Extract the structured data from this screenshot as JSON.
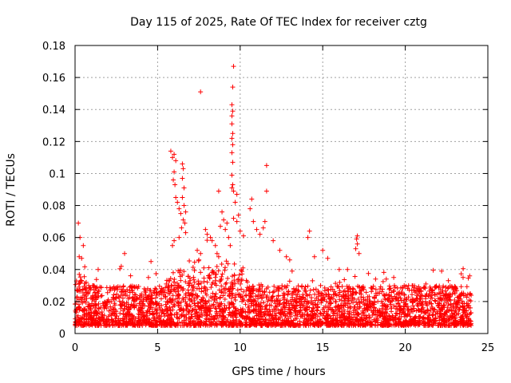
{
  "chart_data": {
    "type": "scatter",
    "title": "Day 115 of 2025, Rate Of TEC Index for receiver cztg",
    "xlabel": "GPS time / hours",
    "ylabel": "ROTI / TECUs",
    "xlim": [
      0,
      25
    ],
    "ylim": [
      0,
      0.18
    ],
    "xticks": [
      0,
      5,
      10,
      15,
      20,
      25
    ],
    "xtick_labels": [
      "0",
      "5",
      "10",
      "15",
      "20",
      "25"
    ],
    "yticks": [
      0,
      0.02,
      0.04,
      0.06,
      0.08,
      0.1,
      0.12,
      0.14,
      0.16,
      0.18
    ],
    "ytick_labels": [
      "0",
      "0.02",
      "0.04",
      "0.06",
      "0.08",
      "0.1",
      "0.12",
      "0.14",
      "0.16",
      "0.18"
    ],
    "grid": true,
    "marker": "+",
    "marker_color": "#ff0000",
    "background_profile": {
      "x_range": [
        0,
        24
      ],
      "typical_range": [
        0.005,
        0.03
      ],
      "active_window_hours": [
        5.5,
        10.5
      ]
    },
    "series": [
      {
        "name": "ROTI",
        "points": [
          [
            0.2,
            0.069
          ],
          [
            0.3,
            0.06
          ],
          [
            0.25,
            0.048
          ],
          [
            0.4,
            0.047
          ],
          [
            0.5,
            0.055
          ],
          [
            1.4,
            0.04
          ],
          [
            2.8,
            0.042
          ],
          [
            3.0,
            0.05
          ],
          [
            4.6,
            0.045
          ],
          [
            5.8,
            0.114
          ],
          [
            5.9,
            0.11
          ],
          [
            6.0,
            0.112
          ],
          [
            6.1,
            0.108
          ],
          [
            6.0,
            0.101
          ],
          [
            5.95,
            0.096
          ],
          [
            6.05,
            0.093
          ],
          [
            6.1,
            0.085
          ],
          [
            6.2,
            0.082
          ],
          [
            6.3,
            0.078
          ],
          [
            6.4,
            0.075
          ],
          [
            6.5,
            0.106
          ],
          [
            6.55,
            0.103
          ],
          [
            6.5,
            0.097
          ],
          [
            6.6,
            0.091
          ],
          [
            6.5,
            0.085
          ],
          [
            6.6,
            0.08
          ],
          [
            6.7,
            0.076
          ],
          [
            6.55,
            0.071
          ],
          [
            6.65,
            0.069
          ],
          [
            6.45,
            0.066
          ],
          [
            6.7,
            0.063
          ],
          [
            6.3,
            0.06
          ],
          [
            6.0,
            0.058
          ],
          [
            5.9,
            0.055
          ],
          [
            7.4,
            0.052
          ],
          [
            7.6,
            0.05
          ],
          [
            7.5,
            0.046
          ],
          [
            7.8,
            0.041
          ],
          [
            7.6,
            0.151
          ],
          [
            7.9,
            0.065
          ],
          [
            8.0,
            0.062
          ],
          [
            8.2,
            0.06
          ],
          [
            8.3,
            0.058
          ],
          [
            8.5,
            0.055
          ],
          [
            8.6,
            0.05
          ],
          [
            8.7,
            0.048
          ],
          [
            8.7,
            0.089
          ],
          [
            8.9,
            0.076
          ],
          [
            8.8,
            0.067
          ],
          [
            9.0,
            0.071
          ],
          [
            9.2,
            0.069
          ],
          [
            9.1,
            0.065
          ],
          [
            9.3,
            0.06
          ],
          [
            9.4,
            0.055
          ],
          [
            9.6,
            0.167
          ],
          [
            9.55,
            0.154
          ],
          [
            9.5,
            0.143
          ],
          [
            9.55,
            0.139
          ],
          [
            9.5,
            0.136
          ],
          [
            9.5,
            0.131
          ],
          [
            9.55,
            0.125
          ],
          [
            9.5,
            0.122
          ],
          [
            9.55,
            0.118
          ],
          [
            9.5,
            0.113
          ],
          [
            9.55,
            0.107
          ],
          [
            9.5,
            0.099
          ],
          [
            9.55,
            0.093
          ],
          [
            9.5,
            0.091
          ],
          [
            9.6,
            0.089
          ],
          [
            9.8,
            0.087
          ],
          [
            9.7,
            0.082
          ],
          [
            9.9,
            0.074
          ],
          [
            9.6,
            0.072
          ],
          [
            9.8,
            0.07
          ],
          [
            10.0,
            0.064
          ],
          [
            10.2,
            0.061
          ],
          [
            10.7,
            0.084
          ],
          [
            10.6,
            0.078
          ],
          [
            10.8,
            0.07
          ],
          [
            11.0,
            0.065
          ],
          [
            11.2,
            0.062
          ],
          [
            11.6,
            0.105
          ],
          [
            11.6,
            0.089
          ],
          [
            11.5,
            0.07
          ],
          [
            11.4,
            0.066
          ],
          [
            12.0,
            0.058
          ],
          [
            12.4,
            0.052
          ],
          [
            12.8,
            0.048
          ],
          [
            13.0,
            0.046
          ],
          [
            14.2,
            0.064
          ],
          [
            14.1,
            0.06
          ],
          [
            14.5,
            0.048
          ],
          [
            15.0,
            0.052
          ],
          [
            15.3,
            0.047
          ],
          [
            16.0,
            0.04
          ],
          [
            16.5,
            0.04
          ],
          [
            17.1,
            0.061
          ],
          [
            17.05,
            0.059
          ],
          [
            17.1,
            0.056
          ],
          [
            17.0,
            0.053
          ],
          [
            17.2,
            0.05
          ],
          [
            18.2,
            0.034
          ],
          [
            19.3,
            0.035
          ],
          [
            20.2,
            0.03
          ],
          [
            22.2,
            0.039
          ],
          [
            23.5,
            0.035
          ],
          [
            23.9,
            0.036
          ]
        ]
      }
    ]
  }
}
